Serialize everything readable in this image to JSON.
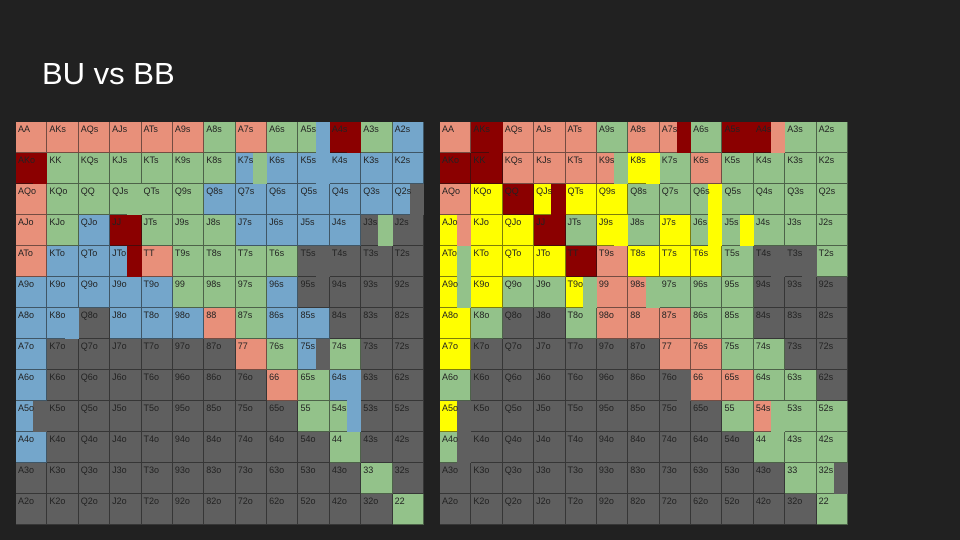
{
  "title": "BU vs BB",
  "colors": {
    "fold": "#5f5f5f",
    "red": "#e8907a",
    "green": "#93c28a",
    "blue": "#74a6cb",
    "dark": "#8b0000",
    "yellow": "#ffff00"
  },
  "grid_left_rows": [
    "r r r r r r g r g g d g b",
    "d g g g g g g b b b b b b",
    "r g g g g g b b b b b b b",
    "r g b d g g g b b b b f f",
    "r b b b r g g g g f f f f",
    "b b b b b g g g b f f f f",
    "b b f b b b r g b b f f f",
    "b f f f f f f r g b g f f",
    "b f f f f f f f r g b f f",
    "b f f f f f f f f g g f f",
    "b f f f f f f f f f g f f",
    "f f f f f f f f f f f g f",
    "f f f f f f f f f f f f g"
  ],
  "grid_right_rows": [
    "r d r r r g r r g d d g g",
    "d d r r r r y g r g g g g",
    "r y d y y y g g g g g g g",
    "y y y d g y g y g g g g g",
    "y y y y d r y y y g f f g",
    "y y g g y r r g g g f f f",
    "y g f f g r r r g g f f f",
    "y f f f f f f r r g g f f",
    "g f f f f f f f r r g g f",
    "y f f f f f f f f g r g g",
    "g f f f f f f f f f g g g",
    "f f f f f f f f f f f g g",
    "f f f f f f f f f f f f g"
  ],
  "grid_left_accents": [
    {
      "hand": "A4s",
      "color": "dark"
    },
    {
      "hand": "AKo",
      "color": "dark"
    },
    {
      "hand": "A5s",
      "color": "blue"
    },
    {
      "hand": "K5s",
      "color": "blue"
    },
    {
      "hand": "QJs",
      "color": "green"
    },
    {
      "hand": "Q2s",
      "color": "fold"
    },
    {
      "hand": "K7s",
      "color": "green"
    },
    {
      "hand": "JTo",
      "color": "dark"
    },
    {
      "hand": "T5s",
      "color": "fold"
    },
    {
      "hand": "J3s",
      "color": "green"
    },
    {
      "hand": "K8o",
      "color": "blue"
    },
    {
      "hand": "75s",
      "color": "fold"
    },
    {
      "hand": "54s",
      "color": "blue"
    },
    {
      "hand": "64s",
      "color": "blue"
    },
    {
      "hand": "A5o",
      "color": "fold"
    }
  ],
  "grid_right_accents": [
    {
      "hand": "A4s",
      "color": "red"
    },
    {
      "hand": "A5s",
      "color": "dark"
    },
    {
      "hand": "A7s",
      "color": "dark"
    },
    {
      "hand": "AKs",
      "color": "dark"
    },
    {
      "hand": "K8s",
      "color": "yellow"
    },
    {
      "hand": "J9s",
      "color": "yellow"
    },
    {
      "hand": "J5s",
      "color": "yellow"
    },
    {
      "hand": "J6s",
      "color": "yellow"
    },
    {
      "hand": "QJs",
      "color": "dark"
    },
    {
      "hand": "Q6s",
      "color": "yellow"
    },
    {
      "hand": "T4s",
      "color": "fold"
    },
    {
      "hand": "T3s",
      "color": "fold"
    },
    {
      "hand": "AJo",
      "color": "red"
    },
    {
      "hand": "ATo",
      "color": "green"
    },
    {
      "hand": "A9o",
      "color": "green"
    },
    {
      "hand": "T9o",
      "color": "green"
    },
    {
      "hand": "76o",
      "color": "fold"
    },
    {
      "hand": "A4o",
      "color": "fold"
    },
    {
      "hand": "A5o",
      "color": "fold"
    },
    {
      "hand": "32s",
      "color": "fold"
    },
    {
      "hand": "54s",
      "color": "green"
    },
    {
      "hand": "K9s",
      "color": "green"
    },
    {
      "hand": "98s",
      "color": "green"
    }
  ]
}
